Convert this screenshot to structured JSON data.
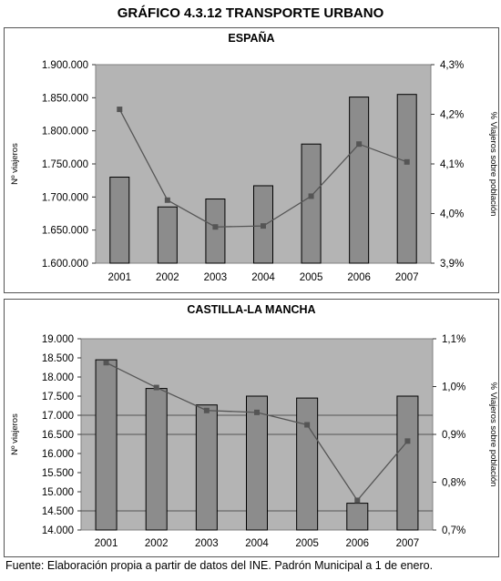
{
  "title": "GRÁFICO 4.3.12 TRANSPORTE URBANO",
  "source": "Fuente: Elaboración propia a partir de datos del INE. Padrón Municipal a 1 de enero.",
  "colors": {
    "plot_bg": "#b4b4b4",
    "bar": "#8c8c8c",
    "line": "#555555",
    "marker": "#555555"
  },
  "chart_data": [
    {
      "type": "bar",
      "title": "ESPAÑA",
      "categories": [
        "2001",
        "2002",
        "2003",
        "2004",
        "2005",
        "2006",
        "2007"
      ],
      "ylabel": "Nº viajeros",
      "y2label": "% Viajeros sobre población",
      "ylim": [
        1600000,
        1900000
      ],
      "yticks": [
        1600000,
        1650000,
        1700000,
        1750000,
        1800000,
        1850000,
        1900000
      ],
      "ytick_labels": [
        "1.600.000",
        "1.650.000",
        "1.700.000",
        "1.750.000",
        "1.800.000",
        "1.850.000",
        "1.900.000"
      ],
      "y2lim": [
        3.9,
        4.3
      ],
      "y2ticks": [
        3.9,
        4.0,
        4.1,
        4.2,
        4.3
      ],
      "y2tick_labels": [
        "3,9%",
        "4,0%",
        "4,1%",
        "4,2%",
        "4,3%"
      ],
      "gridlines": [],
      "series": [
        {
          "kind": "bar",
          "axis": "left",
          "values": [
            1730000,
            1685000,
            1697000,
            1717000,
            1780000,
            1851000,
            1855000
          ]
        },
        {
          "kind": "line",
          "axis": "right",
          "values": [
            4.21,
            4.027,
            3.973,
            3.975,
            4.035,
            4.14,
            4.104
          ]
        }
      ]
    },
    {
      "type": "bar",
      "title": "CASTILLA-LA MANCHA",
      "categories": [
        "2001",
        "2002",
        "2003",
        "2004",
        "2005",
        "2006",
        "2007"
      ],
      "ylabel": "Nº viajeros",
      "y2label": "% Viajeros sobre población",
      "ylim": [
        14000,
        19000
      ],
      "yticks": [
        14000,
        14500,
        15000,
        15500,
        16000,
        16500,
        17000,
        17500,
        18000,
        18500,
        19000
      ],
      "ytick_labels": [
        "14.000",
        "14.500",
        "15.000",
        "15.500",
        "16.000",
        "16.500",
        "17.000",
        "17.500",
        "18.000",
        "18.500",
        "19.000"
      ],
      "y2lim": [
        0.7,
        1.1
      ],
      "y2ticks": [
        0.7,
        0.8,
        0.9,
        1.0,
        1.1
      ],
      "y2tick_labels": [
        "0,7%",
        "0,8%",
        "0,9%",
        "1,0%",
        "1,1%"
      ],
      "gridlines": [
        14500,
        16500,
        17000
      ],
      "series": [
        {
          "kind": "bar",
          "axis": "left",
          "values": [
            18450,
            17700,
            17270,
            17500,
            17450,
            14700,
            17500
          ]
        },
        {
          "kind": "line",
          "axis": "right",
          "values": [
            1.05,
            0.998,
            0.95,
            0.946,
            0.92,
            0.762,
            0.886
          ]
        }
      ]
    }
  ]
}
